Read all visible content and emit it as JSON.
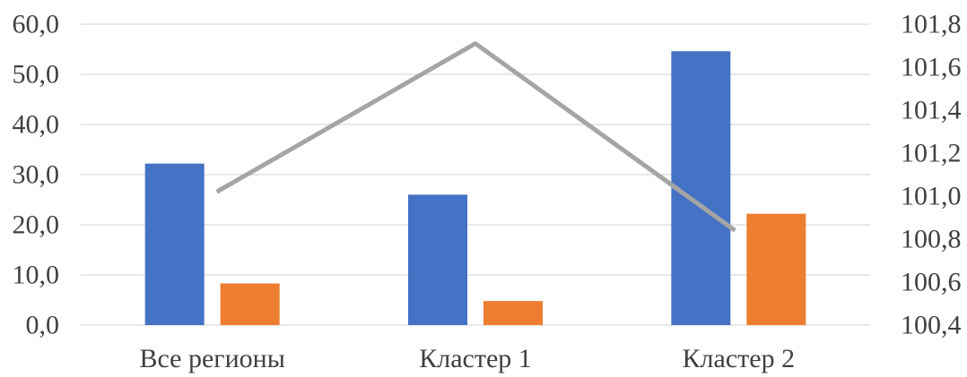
{
  "chart_data": {
    "type": "bar",
    "categories": [
      "Все регионы",
      "Кластер 1",
      "Кластер 2"
    ],
    "series": [
      {
        "values": [
          32.2,
          26.0,
          54.6
        ],
        "color": "#4472C4",
        "axis": "left",
        "kind": "bar"
      },
      {
        "values": [
          8.3,
          4.8,
          22.2
        ],
        "color": "#ED7D31",
        "axis": "left",
        "kind": "bar"
      },
      {
        "values": [
          101.02,
          101.71,
          100.84
        ],
        "color": "#A5A5A5",
        "axis": "right",
        "kind": "line"
      }
    ],
    "ylim": [
      0,
      60
    ],
    "y_ticks": [
      "0,0",
      "10,0",
      "20,0",
      "30,0",
      "40,0",
      "50,0",
      "60,0"
    ],
    "y2lim": [
      100.4,
      101.8
    ],
    "y2_ticks": [
      "100,4",
      "100,6",
      "100,8",
      "101,0",
      "101,2",
      "101,4",
      "101,6",
      "101,8"
    ],
    "grid": true,
    "legend": "none"
  }
}
